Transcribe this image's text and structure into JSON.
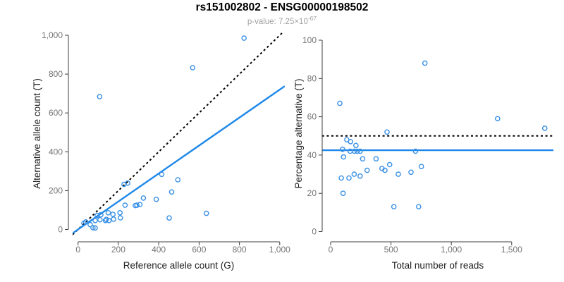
{
  "header": {
    "title": "rs151002802 - ENSG00000198502",
    "pvalue_prefix": "p-value: 7.25×10",
    "pvalue_exponent": "-67"
  },
  "colors": {
    "point_blue": "#3990e6",
    "line_blue": "#1e88e8",
    "reference_black": "#000000",
    "tick_text_gray": "#757575",
    "axis_gray": "#3f3f3f",
    "subtitle_gray": "#a2a2a2"
  },
  "chart_data": [
    {
      "type": "scatter",
      "name": "allele-counts-scatter",
      "xlabel": "Reference allele count (G)",
      "ylabel": "Alternative allele count (T)",
      "xlim": [
        0,
        1000
      ],
      "ylim": [
        0,
        1000
      ],
      "grid": false,
      "xticks": [
        0,
        200,
        400,
        600,
        800,
        1000
      ],
      "xtick_labels": [
        "0",
        "200",
        "400",
        "600",
        "800",
        "1,000"
      ],
      "yticks": [
        0,
        200,
        400,
        600,
        800,
        1000
      ],
      "ytick_labels": [
        "0",
        "200",
        "400",
        "600",
        "800",
        "1,000"
      ],
      "point_color": "#3990e6",
      "points": [
        [
          29,
          32
        ],
        [
          38,
          39
        ],
        [
          60,
          25
        ],
        [
          74,
          9
        ],
        [
          85,
          8
        ],
        [
          85,
          46
        ],
        [
          95,
          72
        ],
        [
          109,
          50
        ],
        [
          113,
          76
        ],
        [
          136,
          46
        ],
        [
          140,
          52
        ],
        [
          150,
          86
        ],
        [
          153,
          46
        ],
        [
          173,
          78
        ],
        [
          176,
          53
        ],
        [
          208,
          86
        ],
        [
          210,
          60
        ],
        [
          228,
          232
        ],
        [
          246,
          239
        ],
        [
          233,
          125
        ],
        [
          284,
          123
        ],
        [
          292,
          125
        ],
        [
          307,
          129
        ],
        [
          324,
          162
        ],
        [
          388,
          155
        ],
        [
          415,
          284
        ],
        [
          452,
          59
        ],
        [
          464,
          193
        ],
        [
          495,
          256
        ],
        [
          568,
          833
        ],
        [
          636,
          83
        ],
        [
          107,
          684
        ],
        [
          823,
          985
        ]
      ],
      "lines": [
        {
          "label": "identity",
          "type": "abline",
          "slope": 1,
          "intercept": 0,
          "style": "dotted",
          "color": "#000000"
        },
        {
          "label": "fit",
          "type": "abline",
          "slope": 0.72,
          "intercept": 0,
          "style": "solid",
          "color": "#1e88e8"
        }
      ]
    },
    {
      "type": "scatter",
      "name": "percentage-vs-coverage-scatter",
      "xlabel": "Total number of reads",
      "ylabel": "Percentage alternative (T)",
      "xlim": [
        0,
        1800
      ],
      "ylim": [
        0,
        100
      ],
      "grid": false,
      "xticks": [
        0,
        500,
        1000,
        1500
      ],
      "xtick_labels": [
        "0",
        "500",
        "1,000",
        "1,500"
      ],
      "yticks": [
        0,
        20,
        40,
        60,
        80,
        100
      ],
      "ytick_labels": [
        "0",
        "20",
        "40",
        "60",
        "80",
        "100"
      ],
      "point_color": "#3990e6",
      "points": [
        [
          76,
          67
        ],
        [
          781,
          88
        ],
        [
          1383,
          59
        ],
        [
          1774,
          54
        ],
        [
          467,
          52
        ],
        [
          134,
          48
        ],
        [
          165,
          47
        ],
        [
          209,
          45
        ],
        [
          99,
          43
        ],
        [
          162,
          42
        ],
        [
          197,
          42
        ],
        [
          220,
          42
        ],
        [
          245,
          42
        ],
        [
          703,
          42
        ],
        [
          107,
          39
        ],
        [
          265,
          38
        ],
        [
          376,
          38
        ],
        [
          489,
          35
        ],
        [
          425,
          33
        ],
        [
          450,
          32
        ],
        [
          302,
          32
        ],
        [
          195,
          30
        ],
        [
          244,
          29
        ],
        [
          88,
          28
        ],
        [
          152,
          28
        ],
        [
          561,
          30
        ],
        [
          666,
          31
        ],
        [
          752,
          34
        ],
        [
          103,
          20
        ],
        [
          524,
          13
        ],
        [
          729,
          13
        ]
      ],
      "lines": [
        {
          "label": "expected-50-percent",
          "type": "hline",
          "y": 50,
          "style": "dotted",
          "color": "#000000"
        },
        {
          "label": "observed-mean",
          "type": "hline",
          "y": 42.5,
          "style": "solid",
          "color": "#1e88e8"
        }
      ]
    }
  ]
}
